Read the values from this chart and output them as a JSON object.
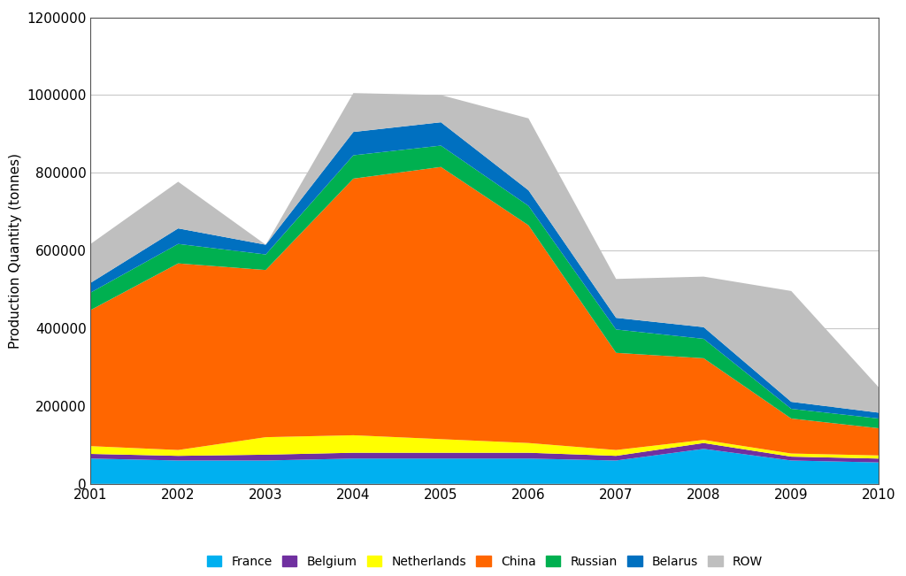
{
  "years": [
    2001,
    2002,
    2003,
    2004,
    2005,
    2006,
    2007,
    2008,
    2009,
    2010
  ],
  "series": {
    "France": [
      65000,
      60000,
      60000,
      65000,
      65000,
      65000,
      60000,
      90000,
      60000,
      55000
    ],
    "Belgium": [
      12000,
      12000,
      15000,
      15000,
      15000,
      15000,
      12000,
      15000,
      10000,
      10000
    ],
    "Netherlands": [
      20000,
      15000,
      45000,
      45000,
      35000,
      25000,
      15000,
      8000,
      8000,
      8000
    ],
    "China": [
      350000,
      480000,
      430000,
      660000,
      700000,
      560000,
      250000,
      210000,
      90000,
      70000
    ],
    "Russian": [
      45000,
      50000,
      40000,
      60000,
      55000,
      50000,
      60000,
      50000,
      25000,
      25000
    ],
    "Belarus": [
      25000,
      40000,
      25000,
      60000,
      60000,
      40000,
      30000,
      30000,
      18000,
      15000
    ],
    "ROW": [
      100000,
      120000,
      0,
      100000,
      70000,
      185000,
      100000,
      130000,
      285000,
      65000
    ]
  },
  "colors": {
    "France": "#00B0F0",
    "Belgium": "#7030A0",
    "Netherlands": "#FFFF00",
    "China": "#FF6600",
    "Russian": "#00B050",
    "Belarus": "#0070C0",
    "ROW": "#BFBFBF"
  },
  "ylabel": "Production Quantity (tonnes)",
  "ylim": [
    0,
    1200000
  ],
  "yticks": [
    0,
    200000,
    400000,
    600000,
    800000,
    1000000,
    1200000
  ],
  "xlim": [
    2001,
    2010
  ],
  "background_color": "#FFFFFF",
  "grid_color": "#C8C8C8",
  "border_color": "#555555"
}
